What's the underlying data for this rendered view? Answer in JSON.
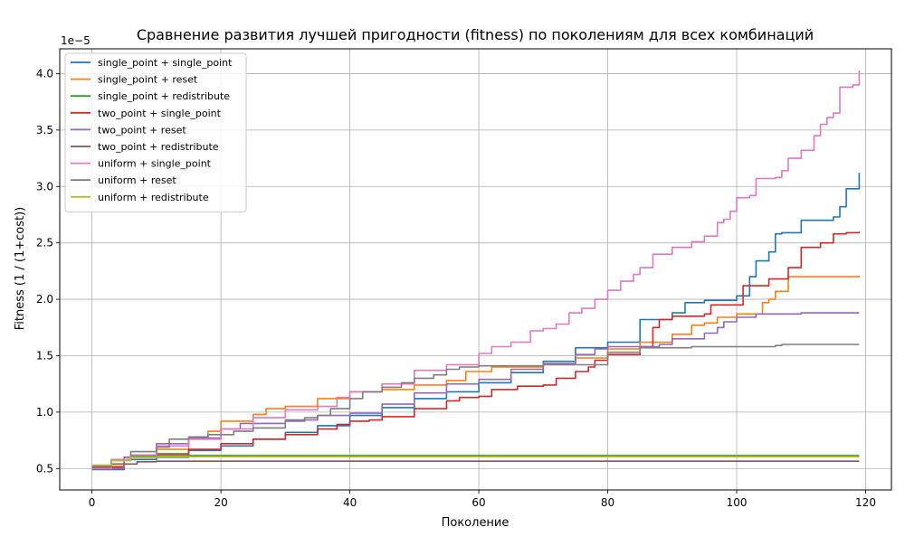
{
  "chart_data": {
    "type": "line",
    "title": "Сравнение развития лучшей пригодности (fitness) по поколениям для всех комбинаций",
    "xlabel": "Поколение",
    "ylabel": "Fitness (1 / (1+cost))",
    "y_scale_label": "1e−5",
    "xlim": [
      -5,
      124
    ],
    "ylim": [
      0.31,
      4.22
    ],
    "x_ticks": [
      0,
      20,
      40,
      60,
      80,
      100,
      120
    ],
    "x_tick_labels": [
      "0",
      "20",
      "40",
      "60",
      "80",
      "100",
      "120"
    ],
    "y_ticks": [
      0.5,
      1.0,
      1.5,
      2.0,
      2.5,
      3.0,
      3.5,
      4.0
    ],
    "y_tick_labels": [
      "0.5",
      "1.0",
      "1.5",
      "2.0",
      "2.5",
      "3.0",
      "3.5",
      "4.0"
    ],
    "grid": true,
    "legend_position": "top-left",
    "series": [
      {
        "name": "single_point + single_point",
        "color": "#1f77b4",
        "points": [
          [
            0,
            0.49
          ],
          [
            5,
            0.58
          ],
          [
            10,
            0.6
          ],
          [
            15,
            0.66
          ],
          [
            20,
            0.7
          ],
          [
            25,
            0.76
          ],
          [
            30,
            0.82
          ],
          [
            35,
            0.88
          ],
          [
            40,
            0.97
          ],
          [
            45,
            1.04
          ],
          [
            50,
            1.12
          ],
          [
            55,
            1.18
          ],
          [
            60,
            1.26
          ],
          [
            65,
            1.35
          ],
          [
            70,
            1.45
          ],
          [
            75,
            1.57
          ],
          [
            80,
            1.62
          ],
          [
            85,
            1.82
          ],
          [
            90,
            1.88
          ],
          [
            92,
            1.97
          ],
          [
            95,
            1.99
          ],
          [
            100,
            2.03
          ],
          [
            102,
            2.2
          ],
          [
            103,
            2.34
          ],
          [
            105,
            2.42
          ],
          [
            106,
            2.58
          ],
          [
            107,
            2.59
          ],
          [
            110,
            2.7
          ],
          [
            113,
            2.7
          ],
          [
            115,
            2.73
          ],
          [
            116,
            2.82
          ],
          [
            117,
            2.98
          ],
          [
            119,
            3.12
          ]
        ]
      },
      {
        "name": "single_point + reset",
        "color": "#ff7f0e",
        "points": [
          [
            0,
            0.52
          ],
          [
            5,
            0.6
          ],
          [
            10,
            0.67
          ],
          [
            15,
            0.76
          ],
          [
            18,
            0.83
          ],
          [
            20,
            0.92
          ],
          [
            25,
            0.98
          ],
          [
            27,
            1.03
          ],
          [
            30,
            1.05
          ],
          [
            35,
            1.12
          ],
          [
            40,
            1.18
          ],
          [
            45,
            1.2
          ],
          [
            50,
            1.24
          ],
          [
            55,
            1.28
          ],
          [
            58,
            1.36
          ],
          [
            62,
            1.4
          ],
          [
            65,
            1.4
          ],
          [
            70,
            1.43
          ],
          [
            75,
            1.48
          ],
          [
            80,
            1.56
          ],
          [
            85,
            1.62
          ],
          [
            90,
            1.69
          ],
          [
            93,
            1.77
          ],
          [
            95,
            1.79
          ],
          [
            97,
            1.84
          ],
          [
            100,
            1.87
          ],
          [
            103,
            1.87
          ],
          [
            104,
            1.97
          ],
          [
            105,
            2.0
          ],
          [
            106,
            2.07
          ],
          [
            108,
            2.2
          ],
          [
            115,
            2.2
          ],
          [
            118,
            2.2
          ],
          [
            119,
            2.21
          ]
        ]
      },
      {
        "name": "single_point + redistribute",
        "color": "#2ca02c",
        "points": [
          [
            0,
            0.51
          ],
          [
            3,
            0.58
          ],
          [
            6,
            0.61
          ],
          [
            10,
            0.615
          ],
          [
            119,
            0.615
          ]
        ]
      },
      {
        "name": "two_point + single_point",
        "color": "#d62728",
        "points": [
          [
            0,
            0.51
          ],
          [
            5,
            0.6
          ],
          [
            10,
            0.63
          ],
          [
            15,
            0.67
          ],
          [
            20,
            0.72
          ],
          [
            25,
            0.76
          ],
          [
            30,
            0.8
          ],
          [
            35,
            0.85
          ],
          [
            38,
            0.89
          ],
          [
            40,
            0.92
          ],
          [
            43,
            0.93
          ],
          [
            45,
            0.96
          ],
          [
            50,
            1.03
          ],
          [
            55,
            1.1
          ],
          [
            57,
            1.13
          ],
          [
            60,
            1.14
          ],
          [
            62,
            1.2
          ],
          [
            66,
            1.23
          ],
          [
            70,
            1.24
          ],
          [
            72,
            1.3
          ],
          [
            75,
            1.36
          ],
          [
            77,
            1.4
          ],
          [
            78,
            1.46
          ],
          [
            80,
            1.51
          ],
          [
            85,
            1.58
          ],
          [
            87,
            1.75
          ],
          [
            88,
            1.82
          ],
          [
            90,
            1.85
          ],
          [
            95,
            1.87
          ],
          [
            96,
            1.95
          ],
          [
            100,
            1.95
          ],
          [
            101,
            2.12
          ],
          [
            105,
            2.18
          ],
          [
            108,
            2.28
          ],
          [
            110,
            2.46
          ],
          [
            113,
            2.5
          ],
          [
            115,
            2.58
          ],
          [
            117,
            2.59
          ],
          [
            119,
            2.6
          ]
        ]
      },
      {
        "name": "two_point + reset",
        "color": "#9467bd",
        "points": [
          [
            0,
            0.5
          ],
          [
            5,
            0.6
          ],
          [
            10,
            0.72
          ],
          [
            15,
            0.77
          ],
          [
            20,
            0.85
          ],
          [
            23,
            0.9
          ],
          [
            30,
            0.93
          ],
          [
            35,
            0.97
          ],
          [
            40,
            0.99
          ],
          [
            45,
            1.07
          ],
          [
            50,
            1.17
          ],
          [
            55,
            1.25
          ],
          [
            60,
            1.29
          ],
          [
            65,
            1.38
          ],
          [
            70,
            1.43
          ],
          [
            75,
            1.51
          ],
          [
            78,
            1.56
          ],
          [
            80,
            1.58
          ],
          [
            85,
            1.58
          ],
          [
            88,
            1.6
          ],
          [
            90,
            1.65
          ],
          [
            95,
            1.7
          ],
          [
            97,
            1.75
          ],
          [
            98,
            1.8
          ],
          [
            100,
            1.84
          ],
          [
            103,
            1.87
          ],
          [
            110,
            1.88
          ],
          [
            119,
            1.88
          ]
        ]
      },
      {
        "name": "two_point + redistribute",
        "color": "#8c564b",
        "points": [
          [
            0,
            0.52
          ],
          [
            3,
            0.54
          ],
          [
            7,
            0.56
          ],
          [
            10,
            0.565
          ],
          [
            119,
            0.565
          ]
        ]
      },
      {
        "name": "uniform + single_point",
        "color": "#e377c2",
        "points": [
          [
            0,
            0.5
          ],
          [
            3,
            0.58
          ],
          [
            6,
            0.62
          ],
          [
            10,
            0.7
          ],
          [
            15,
            0.76
          ],
          [
            20,
            0.85
          ],
          [
            25,
            0.95
          ],
          [
            30,
            1.02
          ],
          [
            35,
            1.05
          ],
          [
            38,
            1.13
          ],
          [
            40,
            1.18
          ],
          [
            45,
            1.25
          ],
          [
            50,
            1.37
          ],
          [
            55,
            1.42
          ],
          [
            60,
            1.52
          ],
          [
            62,
            1.58
          ],
          [
            65,
            1.62
          ],
          [
            68,
            1.72
          ],
          [
            70,
            1.74
          ],
          [
            72,
            1.78
          ],
          [
            74,
            1.88
          ],
          [
            76,
            1.92
          ],
          [
            78,
            2.0
          ],
          [
            80,
            2.08
          ],
          [
            82,
            2.16
          ],
          [
            84,
            2.22
          ],
          [
            85,
            2.28
          ],
          [
            87,
            2.4
          ],
          [
            90,
            2.46
          ],
          [
            93,
            2.51
          ],
          [
            95,
            2.56
          ],
          [
            97,
            2.68
          ],
          [
            98,
            2.71
          ],
          [
            99,
            2.78
          ],
          [
            100,
            2.9
          ],
          [
            102,
            2.92
          ],
          [
            103,
            3.07
          ],
          [
            106,
            3.08
          ],
          [
            107,
            3.14
          ],
          [
            108,
            3.25
          ],
          [
            110,
            3.32
          ],
          [
            112,
            3.45
          ],
          [
            113,
            3.55
          ],
          [
            114,
            3.61
          ],
          [
            115,
            3.65
          ],
          [
            116,
            3.88
          ],
          [
            118,
            3.9
          ],
          [
            119,
            4.03
          ]
        ]
      },
      {
        "name": "uniform + reset",
        "color": "#7f7f7f",
        "points": [
          [
            0,
            0.52
          ],
          [
            3,
            0.57
          ],
          [
            6,
            0.65
          ],
          [
            10,
            0.69
          ],
          [
            12,
            0.76
          ],
          [
            15,
            0.78
          ],
          [
            18,
            0.8
          ],
          [
            22,
            0.83
          ],
          [
            25,
            0.86
          ],
          [
            30,
            0.92
          ],
          [
            33,
            0.95
          ],
          [
            35,
            0.97
          ],
          [
            37,
            1.03
          ],
          [
            40,
            1.12
          ],
          [
            42,
            1.18
          ],
          [
            45,
            1.22
          ],
          [
            48,
            1.26
          ],
          [
            50,
            1.3
          ],
          [
            53,
            1.33
          ],
          [
            55,
            1.38
          ],
          [
            57,
            1.4
          ],
          [
            60,
            1.41
          ],
          [
            70,
            1.42
          ],
          [
            80,
            1.53
          ],
          [
            85,
            1.57
          ],
          [
            93,
            1.58
          ],
          [
            100,
            1.58
          ],
          [
            106,
            1.59
          ],
          [
            107,
            1.6
          ],
          [
            119,
            1.6
          ]
        ]
      },
      {
        "name": "uniform + redistribute",
        "color": "#bcbd22",
        "points": [
          [
            0,
            0.53
          ],
          [
            3,
            0.57
          ],
          [
            6,
            0.6
          ],
          [
            10,
            0.605
          ],
          [
            119,
            0.605
          ]
        ]
      }
    ]
  }
}
